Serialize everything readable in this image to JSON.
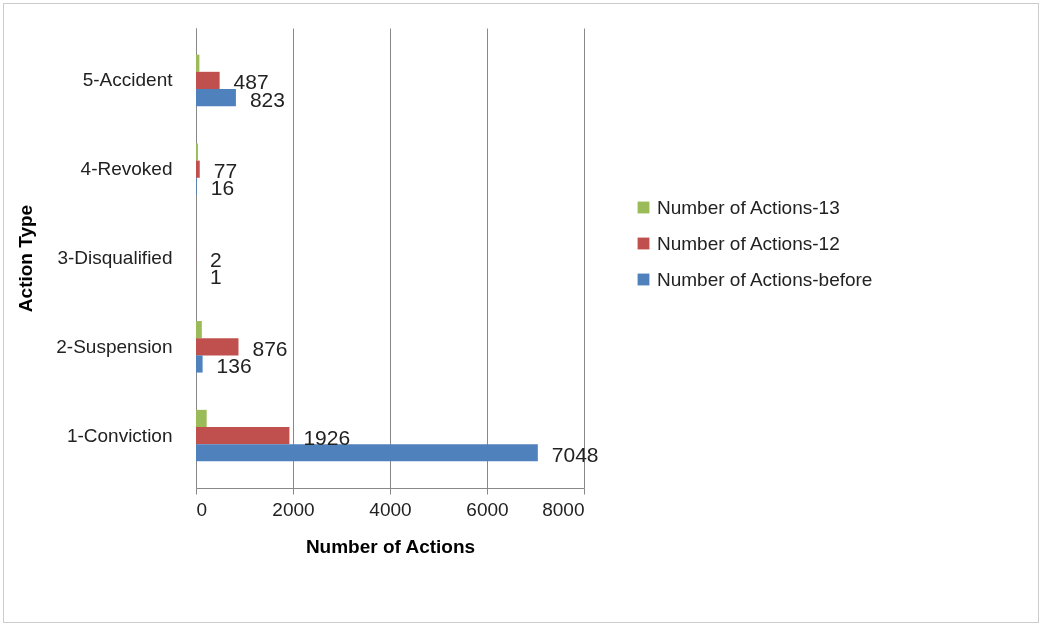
{
  "chart_data": {
    "type": "bar",
    "orientation": "horizontal",
    "xlabel": "Number of Actions",
    "ylabel": "Action Type",
    "categories": [
      "5-Accident",
      "4-Revoked",
      "3-Disqualified",
      "2-Suspension",
      "1-Conviction"
    ],
    "series": [
      {
        "name": "Number of Actions-13",
        "color": "#9bbb59",
        "values": [
          70,
          40,
          0,
          120,
          220
        ],
        "value_labels": [
          null,
          null,
          null,
          null,
          null
        ]
      },
      {
        "name": "Number of Actions-12",
        "color": "#c0504d",
        "values": [
          487,
          77,
          2,
          876,
          1926
        ],
        "value_labels": [
          "487",
          "77",
          "2",
          "876",
          "1926"
        ]
      },
      {
        "name": "Number of Actions-before",
        "color": "#4f81bd",
        "values": [
          823,
          16,
          1,
          136,
          7048
        ],
        "value_labels": [
          "823",
          "16",
          "1",
          "136",
          "7048"
        ]
      }
    ],
    "xlim": [
      0,
      8000
    ],
    "xticks": [
      0,
      2000,
      4000,
      6000,
      8000
    ],
    "grid": "x",
    "legend": "right"
  }
}
